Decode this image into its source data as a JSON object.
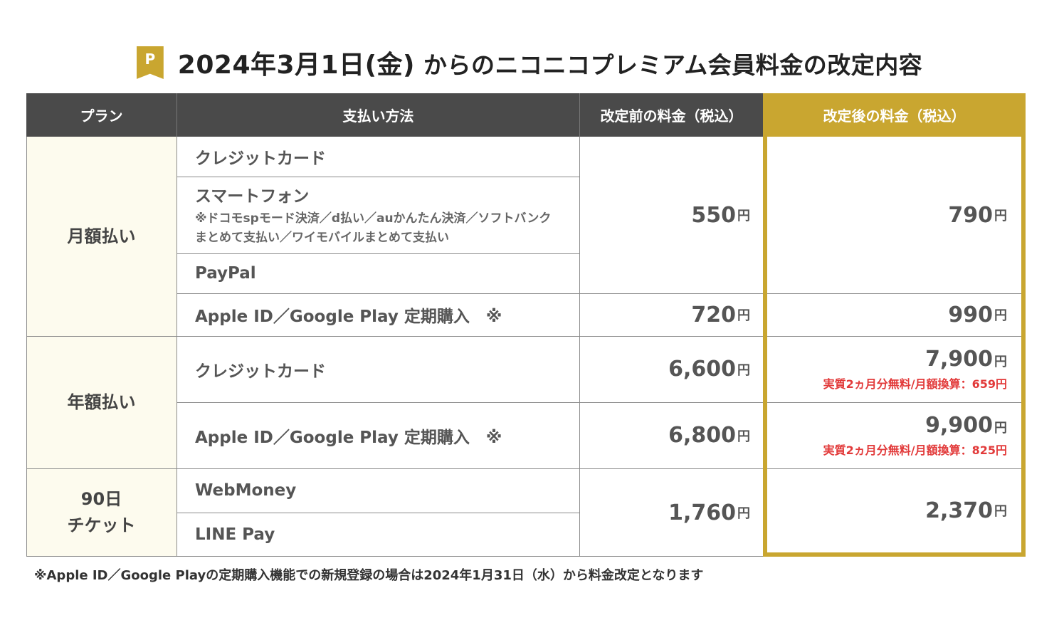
{
  "title": {
    "badge": "P",
    "date_part": "2024年3月1日(金)",
    "rest": "からのニコニコプレミアム会員料金の改定内容"
  },
  "headers": {
    "plan": "プラン",
    "method": "支払い方法",
    "before": "改定前の料金（税込）",
    "after": "改定後の料金（税込）"
  },
  "plans": {
    "monthly": "月額払い",
    "yearly": "年額払い",
    "ticket_line1": "90日",
    "ticket_line2": "チケット"
  },
  "methods": {
    "credit": "クレジットカード",
    "smartphone": "スマートフォン",
    "smartphone_note_1": "※ドコモspモード決済／d払い／auかんたん決済／ソフトバンク",
    "smartphone_note_2": "まとめて支払い／ワイモバイルまとめて支払い",
    "paypal": "PayPal",
    "apple_google": "Apple ID／Google Play 定期購入　※",
    "credit_yearly": "クレジットカード",
    "apple_google_yearly": "Apple ID／Google Play 定期購入　※",
    "webmoney": "WebMoney",
    "linepay": "LINE Pay"
  },
  "yen": "円",
  "prices_before": {
    "monthly_std": "550",
    "monthly_app": "720",
    "yearly_credit": "6,600",
    "yearly_app": "6,800",
    "ticket": "1,760"
  },
  "prices_after": {
    "monthly_std": "790",
    "monthly_app": "990",
    "yearly_credit": "7,900",
    "yearly_credit_note": "実質2ヵ月分無料/月額換算：659円",
    "yearly_app": "9,900",
    "yearly_app_note": "実質2ヵ月分無料/月額換算：825円",
    "ticket": "2,370"
  },
  "footnote": "※Apple ID／Google Playの定期購入機能での新規登録の場合は2024年1月31日（水）から料金改定となります",
  "colors": {
    "header_dark": "#4a4a4a",
    "accent_gold": "#c9a630",
    "plan_bg": "#fdfbee",
    "note_red": "#e23a3a"
  }
}
